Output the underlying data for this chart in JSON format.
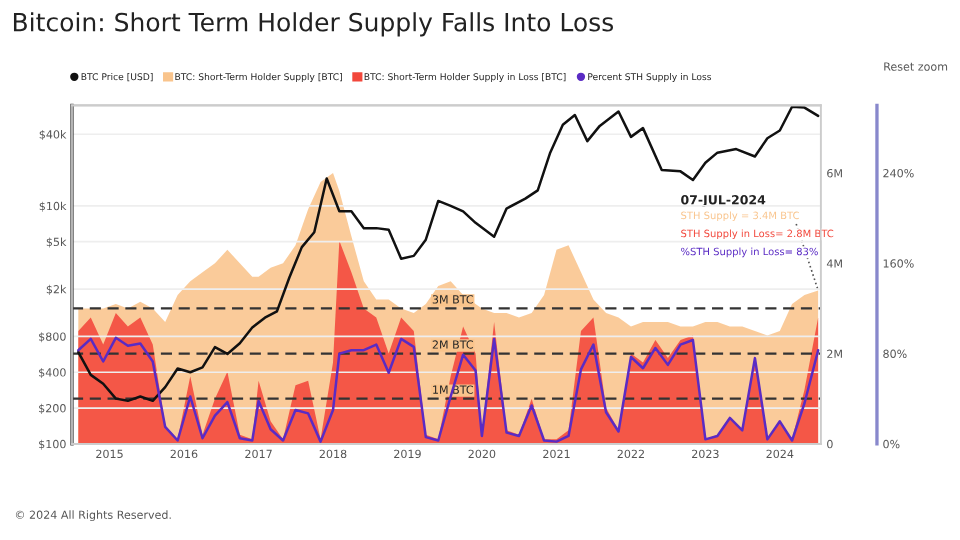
{
  "chart_data": {
    "type": "area",
    "title": "Bitcoin: Short Term Holder Supply Falls Into Loss",
    "xlim": [
      "2014-07-01",
      "2024-07-20"
    ],
    "xticks": [
      "2015",
      "2016",
      "2017",
      "2018",
      "2019",
      "2020",
      "2021",
      "2022",
      "2023",
      "2024"
    ],
    "log": "y",
    "ylim": [
      100,
      70000
    ],
    "yticks": [
      {
        "value": 100,
        "label": "$100"
      },
      {
        "value": 200,
        "label": "$200"
      },
      {
        "value": 400,
        "label": "$400"
      },
      {
        "value": 800,
        "label": "$800"
      },
      {
        "value": 2000,
        "label": "$2k"
      },
      {
        "value": 5000,
        "label": "$5k"
      },
      {
        "value": 10000,
        "label": "$10k"
      },
      {
        "value": 40000,
        "label": "$40k"
      }
    ],
    "y2lim": [
      0,
      7500000
    ],
    "y2ticks": [
      0,
      {
        "value": 2000000,
        "label": "2M"
      },
      {
        "value": 4000000,
        "label": "4M"
      },
      {
        "value": 6000000,
        "label": "6M"
      }
    ],
    "y3lim": [
      0,
      300
    ],
    "y3ticks": [
      {
        "value": 0,
        "label": "0%"
      },
      {
        "value": 80,
        "label": "80%"
      },
      {
        "value": 160,
        "label": "160%"
      },
      {
        "value": 240,
        "label": "240%"
      }
    ],
    "grid": "y",
    "legend": "top",
    "series": [
      {
        "name": "BTC Price [USD]",
        "type": "line",
        "axis": "y",
        "color": "#111111",
        "x": [
          "2014-08",
          "2014-10",
          "2014-12",
          "2015-02",
          "2015-04",
          "2015-06",
          "2015-08",
          "2015-10",
          "2015-12",
          "2016-02",
          "2016-04",
          "2016-06",
          "2016-08",
          "2016-10",
          "2016-12",
          "2017-02",
          "2017-04",
          "2017-06",
          "2017-08",
          "2017-10",
          "2017-12",
          "2018-02",
          "2018-04",
          "2018-06",
          "2018-08",
          "2018-10",
          "2018-12",
          "2019-02",
          "2019-04",
          "2019-06",
          "2019-08",
          "2019-10",
          "2019-12",
          "2020-03",
          "2020-05",
          "2020-08",
          "2020-10",
          "2020-12",
          "2021-02",
          "2021-04",
          "2021-06",
          "2021-08",
          "2021-11",
          "2022-01",
          "2022-03",
          "2022-06",
          "2022-09",
          "2022-11",
          "2023-01",
          "2023-03",
          "2023-06",
          "2023-09",
          "2023-11",
          "2024-01",
          "2024-03",
          "2024-05",
          "2024-07-07"
        ],
        "values": [
          590,
          380,
          320,
          240,
          230,
          250,
          230,
          300,
          430,
          400,
          440,
          650,
          570,
          700,
          950,
          1150,
          1300,
          2500,
          4500,
          6000,
          17000,
          9000,
          9000,
          6500,
          6500,
          6300,
          3600,
          3800,
          5200,
          11000,
          10000,
          9000,
          7200,
          5500,
          9500,
          11500,
          13500,
          28000,
          48000,
          58000,
          35000,
          47000,
          62000,
          38000,
          45000,
          20000,
          19500,
          16500,
          23000,
          28000,
          30000,
          26000,
          37000,
          43000,
          68000,
          67000,
          57000
        ]
      },
      {
        "name": "BTC: Short-Term Holder Supply [BTC]",
        "axis": "y2",
        "color": "#f9c48c",
        "values": [
          3000000,
          3000000,
          3000000,
          3100000,
          3000000,
          3150000,
          3000000,
          2700000,
          3300000,
          3600000,
          3800000,
          4000000,
          4300000,
          4000000,
          3700000,
          3700000,
          3900000,
          4000000,
          4400000,
          5200000,
          5800000,
          6000000,
          5600000,
          4600000,
          3600000,
          3200000,
          3200000,
          3000000,
          2900000,
          3100000,
          3500000,
          3600000,
          3300000,
          3100000,
          3000000,
          2900000,
          2900000,
          2800000,
          2900000,
          3300000,
          4300000,
          4400000,
          3800000,
          3200000,
          2900000,
          2800000,
          2600000,
          2700000,
          2700000,
          2700000,
          2600000,
          2600000,
          2700000,
          2700000,
          2600000,
          2600000,
          2500000,
          2400000,
          2500000,
          3100000,
          3300000,
          3400000
        ]
      },
      {
        "name": "BTC: Short-Term Holder Supply in Loss [BTC]",
        "axis": "y2",
        "color": "#f2473b",
        "values": [
          2500000,
          2800000,
          2200000,
          2900000,
          2600000,
          2800000,
          2200000,
          400000,
          100000,
          1500000,
          200000,
          1000000,
          1600000,
          200000,
          100000,
          1400000,
          500000,
          100000,
          1300000,
          1400000,
          100000,
          1800000,
          4500000,
          3800000,
          3000000,
          2800000,
          2000000,
          2800000,
          2500000,
          200000,
          100000,
          1500000,
          2600000,
          2000000,
          200000,
          2700000,
          300000,
          200000,
          1000000,
          100000,
          100000,
          300000,
          2500000,
          2800000,
          800000,
          300000,
          2000000,
          1800000,
          2300000,
          1900000,
          2300000,
          2400000,
          100000,
          200000,
          600000,
          300000,
          1900000,
          100000,
          500000,
          100000,
          1200000,
          2800000
        ]
      },
      {
        "name": "Percent STH Supply in Loss",
        "type": "line",
        "axis": "y3",
        "color": "#5a2bc4",
        "values": [
          83,
          93,
          73,
          94,
          87,
          89,
          73,
          15,
          3,
          42,
          5,
          25,
          37,
          5,
          3,
          38,
          13,
          3,
          30,
          27,
          2,
          30,
          80,
          83,
          83,
          88,
          63,
          93,
          86,
          6,
          3,
          42,
          79,
          65,
          7,
          93,
          10,
          7,
          34,
          3,
          2,
          7,
          66,
          88,
          28,
          11,
          77,
          67,
          85,
          70,
          88,
          92,
          4,
          7,
          23,
          12,
          76,
          4,
          20,
          3,
          36,
          83
        ]
      }
    ],
    "x": [
      "2014-08",
      "2014-10",
      "2014-12",
      "2015-02",
      "2015-04",
      "2015-06",
      "2015-08",
      "2015-10",
      "2015-12",
      "2016-02",
      "2016-04",
      "2016-06",
      "2016-08",
      "2016-10",
      "2016-12",
      "2017-01",
      "2017-03",
      "2017-05",
      "2017-07",
      "2017-09",
      "2017-11",
      "2018-01",
      "2018-02",
      "2018-04",
      "2018-06",
      "2018-08",
      "2018-10",
      "2018-12",
      "2019-02",
      "2019-04",
      "2019-06",
      "2019-08",
      "2019-10",
      "2019-12",
      "2020-01",
      "2020-03",
      "2020-05",
      "2020-07",
      "2020-09",
      "2020-11",
      "2021-01",
      "2021-03",
      "2021-05",
      "2021-07",
      "2021-09",
      "2021-11",
      "2022-01",
      "2022-03",
      "2022-05",
      "2022-07",
      "2022-09",
      "2022-11",
      "2023-01",
      "2023-03",
      "2023-05",
      "2023-07",
      "2023-09",
      "2023-11",
      "2024-01",
      "2024-03",
      "2024-05",
      "2024-07-07"
    ],
    "ref_lines": [
      {
        "axis": "y2",
        "value": 3000000,
        "label": "3M BTC",
        "color": "#333333",
        "line_style": "dashed"
      },
      {
        "axis": "y2",
        "value": 2000000,
        "label": "2M BTC",
        "color": "#333333",
        "line_style": "dashed"
      },
      {
        "axis": "y2",
        "value": 1000000,
        "label": "1M BTC",
        "color": "#333333",
        "line_style": "dashed"
      }
    ],
    "annotations": [
      "Reset zoom",
      "© 2024 All Rights Reserved.",
      "07-JUL-2024",
      "STH Supply = 3.4M BTC",
      "STH Supply in Loss= 2.8M BTC",
      "%STH Supply in Loss= 83%"
    ]
  }
}
